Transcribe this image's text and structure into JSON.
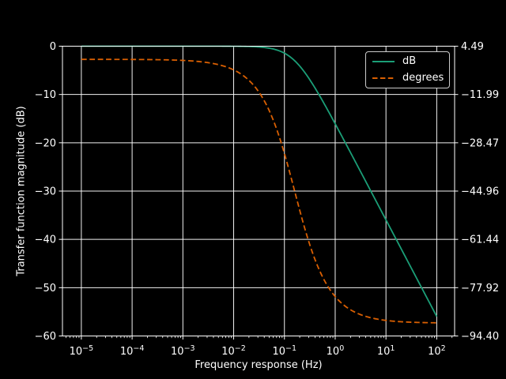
{
  "figure": {
    "background": "#000000",
    "text_color": "#ffffff",
    "grid_color": "#ffffff",
    "spine_color": "#ffffff"
  },
  "chart_data": {
    "type": "line",
    "title": "",
    "xlabel": "Frequency response (Hz)",
    "ylabel_left": "Transfer function magnitude (dB)",
    "ylabel_right": "",
    "x_scale": "log",
    "grid": true,
    "legend_position": "upper right",
    "xlim_log10": [
      -5.372,
      2.352
    ],
    "ylim_left": [
      -60,
      0
    ],
    "ylim_right": [
      -94.4,
      4.49
    ],
    "x_tick_exponents": [
      -5,
      -4,
      -3,
      -2,
      -1,
      0,
      1,
      2
    ],
    "x_tick_base": "10",
    "y_ticks_left_values": [
      0,
      -10,
      -20,
      -30,
      -40,
      -50,
      -60
    ],
    "y_ticks_left_labels": [
      "0",
      "−10",
      "−20",
      "−30",
      "−40",
      "−50",
      "−60"
    ],
    "y_ticks_right_labels": [
      "4.49",
      "−11.99",
      "−28.47",
      "−44.96",
      "−61.44",
      "−77.92",
      "−94.40"
    ],
    "model": {
      "type": "first_order_lowpass",
      "omega_c_rad_per_s": 1.0,
      "corner_freq_hz": 0.159155,
      "f_log10_min": -5,
      "f_log10_max": 2
    },
    "series": [
      {
        "name": "dB",
        "axis": "left",
        "color": "#1b9e77",
        "style": "solid",
        "x_log10": [
          -5,
          -4.75,
          -4.5,
          -4.25,
          -4,
          -3.75,
          -3.5,
          -3.25,
          -3,
          -2.75,
          -2.5,
          -2.25,
          -2,
          -1.75,
          -1.5,
          -1.25,
          -1,
          -0.75,
          -0.5,
          -0.25,
          0,
          0.25,
          0.5,
          0.75,
          1,
          1.25,
          1.5,
          1.75,
          2
        ],
        "values": [
          0,
          0,
          0,
          0,
          0,
          0,
          0,
          -0.0001,
          -0.0002,
          -0.0005,
          -0.0017,
          -0.0054,
          -0.0171,
          -0.054,
          -0.169,
          -0.511,
          -1.445,
          -3.518,
          -6.944,
          -11.298,
          -16.072,
          -20.998,
          -25.975,
          -30.963,
          -35.965,
          -40.961,
          -45.962,
          -50.963,
          -55.963
        ]
      },
      {
        "name": "degrees",
        "axis": "right",
        "color": "#d95f02",
        "style": "dashed",
        "x_log10": [
          -5,
          -4.75,
          -4.5,
          -4.25,
          -4,
          -3.75,
          -3.5,
          -3.25,
          -3,
          -2.75,
          -2.5,
          -2.25,
          -2,
          -1.75,
          -1.5,
          -1.25,
          -1,
          -0.75,
          -0.5,
          -0.25,
          0,
          0.25,
          0.5,
          0.75,
          1,
          1.25,
          1.5,
          1.75,
          2
        ],
        "values": [
          -0.004,
          -0.006,
          -0.011,
          -0.02,
          -0.036,
          -0.064,
          -0.114,
          -0.202,
          -0.36,
          -0.64,
          -1.138,
          -2.023,
          -3.595,
          -6.375,
          -11.236,
          -19.458,
          -32.142,
          -48.171,
          -63.271,
          -74.186,
          -80.957,
          -84.885,
          -87.118,
          -88.379,
          -89.088,
          -89.487,
          -89.712,
          -89.838,
          -89.909
        ]
      }
    ]
  },
  "legend": {
    "entries": [
      {
        "label": "dB"
      },
      {
        "label": "degrees"
      }
    ]
  }
}
